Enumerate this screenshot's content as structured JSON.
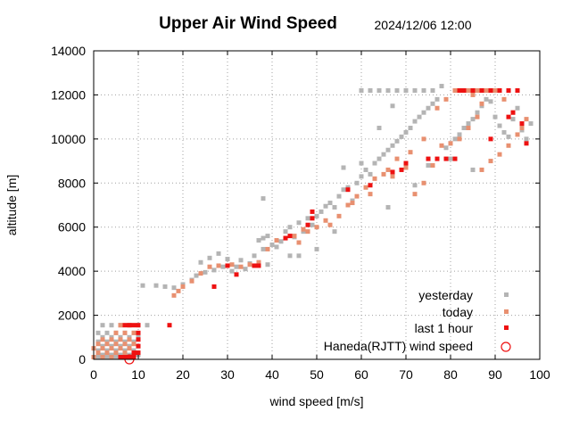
{
  "chart_data": {
    "type": "scatter",
    "title": "Upper Air Wind Speed",
    "timestamp": "2024/12/06 12:00",
    "xlabel": "wind speed  [m/s]",
    "ylabel": "altitude  [m]",
    "xlim": [
      0,
      100
    ],
    "ylim": [
      0,
      14000
    ],
    "xticks": [
      "0",
      "10",
      "20",
      "30",
      "40",
      "50",
      "60",
      "70",
      "80",
      "90",
      "100"
    ],
    "yticks": [
      "0",
      "2000",
      "4000",
      "6000",
      "8000",
      "10000",
      "12000",
      "14000"
    ],
    "grid": true,
    "legend_position": "bottom-right",
    "series": [
      {
        "name": "yesterday",
        "color": "#b4b4b4",
        "marker": "filled-square",
        "points": [
          [
            1,
            100
          ],
          [
            3,
            100
          ],
          [
            5,
            100
          ],
          [
            7,
            100
          ],
          [
            9,
            100
          ],
          [
            2,
            200
          ],
          [
            4,
            200
          ],
          [
            6,
            200
          ],
          [
            8,
            200
          ],
          [
            10,
            200
          ],
          [
            1,
            400
          ],
          [
            3,
            400
          ],
          [
            5,
            400
          ],
          [
            7,
            400
          ],
          [
            9,
            400
          ],
          [
            2,
            600
          ],
          [
            4,
            600
          ],
          [
            6,
            600
          ],
          [
            8,
            600
          ],
          [
            10,
            600
          ],
          [
            1,
            800
          ],
          [
            3,
            800
          ],
          [
            5,
            800
          ],
          [
            7,
            800
          ],
          [
            9,
            800
          ],
          [
            2,
            1000
          ],
          [
            4,
            1000
          ],
          [
            6,
            1000
          ],
          [
            8,
            1000
          ],
          [
            10,
            1000
          ],
          [
            1,
            1200
          ],
          [
            3,
            1200
          ],
          [
            5,
            1200
          ],
          [
            7,
            1200
          ],
          [
            9,
            1200
          ],
          [
            2,
            1550
          ],
          [
            4,
            1550
          ],
          [
            6,
            1550
          ],
          [
            8,
            1550
          ],
          [
            10,
            1550
          ],
          [
            12,
            1550
          ],
          [
            11,
            3350
          ],
          [
            14,
            3350
          ],
          [
            16,
            3300
          ],
          [
            18,
            3250
          ],
          [
            20,
            3400
          ],
          [
            22,
            3600
          ],
          [
            23,
            3800
          ],
          [
            25,
            3950
          ],
          [
            27,
            4050
          ],
          [
            29,
            4200
          ],
          [
            31,
            4000
          ],
          [
            33,
            4500
          ],
          [
            35,
            4350
          ],
          [
            37,
            4400
          ],
          [
            39,
            4300
          ],
          [
            24,
            4400
          ],
          [
            26,
            4600
          ],
          [
            28,
            4800
          ],
          [
            30,
            4550
          ],
          [
            32,
            4200
          ],
          [
            34,
            4100
          ],
          [
            36,
            4700
          ],
          [
            38,
            5000
          ],
          [
            40,
            5200
          ],
          [
            37,
            5400
          ],
          [
            38,
            5500
          ],
          [
            39,
            5600
          ],
          [
            41,
            5100
          ],
          [
            42,
            5350
          ],
          [
            43,
            5800
          ],
          [
            44,
            6000
          ],
          [
            45,
            5550
          ],
          [
            46,
            6200
          ],
          [
            47,
            5800
          ],
          [
            48,
            6400
          ],
          [
            49,
            6100
          ],
          [
            50,
            6500
          ],
          [
            51,
            6700
          ],
          [
            52,
            6950
          ],
          [
            53,
            7100
          ],
          [
            54,
            6900
          ],
          [
            55,
            7400
          ],
          [
            56,
            7700
          ],
          [
            57,
            7800
          ],
          [
            58,
            7200
          ],
          [
            59,
            8000
          ],
          [
            60,
            8300
          ],
          [
            61,
            8600
          ],
          [
            62,
            8400
          ],
          [
            63,
            8900
          ],
          [
            64,
            9100
          ],
          [
            65,
            9300
          ],
          [
            66,
            9500
          ],
          [
            67,
            9700
          ],
          [
            68,
            9900
          ],
          [
            69,
            10100
          ],
          [
            70,
            10300
          ],
          [
            71,
            10500
          ],
          [
            72,
            10800
          ],
          [
            73,
            11000
          ],
          [
            74,
            11200
          ],
          [
            75,
            11400
          ],
          [
            76,
            11600
          ],
          [
            77,
            11800
          ],
          [
            78,
            12400
          ],
          [
            79,
            9600
          ],
          [
            80,
            9800
          ],
          [
            81,
            10000
          ],
          [
            82,
            10200
          ],
          [
            83,
            10500
          ],
          [
            84,
            10700
          ],
          [
            85,
            10900
          ],
          [
            86,
            11200
          ],
          [
            87,
            11500
          ],
          [
            88,
            11800
          ],
          [
            89,
            11700
          ],
          [
            90,
            11000
          ],
          [
            91,
            10600
          ],
          [
            92,
            10300
          ],
          [
            93,
            10100
          ],
          [
            94,
            10900
          ],
          [
            95,
            11400
          ],
          [
            96,
            10400
          ],
          [
            97,
            10000
          ],
          [
            98,
            10700
          ],
          [
            60,
            12200
          ],
          [
            62,
            12200
          ],
          [
            64,
            12200
          ],
          [
            66,
            12200
          ],
          [
            68,
            12200
          ],
          [
            70,
            12200
          ],
          [
            72,
            12200
          ],
          [
            74,
            12200
          ],
          [
            76,
            12200
          ],
          [
            84,
            12200
          ],
          [
            86,
            12200
          ],
          [
            88,
            12200
          ],
          [
            90,
            12200
          ],
          [
            38,
            7300
          ],
          [
            44,
            4700
          ],
          [
            54,
            5800
          ],
          [
            66,
            6900
          ],
          [
            72,
            7900
          ],
          [
            75,
            8800
          ],
          [
            80,
            9100
          ],
          [
            85,
            8600
          ],
          [
            50,
            5000
          ],
          [
            46,
            4700
          ],
          [
            56,
            8700
          ],
          [
            60,
            8900
          ],
          [
            64,
            10500
          ],
          [
            67,
            11500
          ]
        ]
      },
      {
        "name": "today",
        "color": "#e89070",
        "marker": "filled-square",
        "points": [
          [
            0,
            100
          ],
          [
            2,
            100
          ],
          [
            4,
            100
          ],
          [
            6,
            100
          ],
          [
            8,
            100
          ],
          [
            1,
            300
          ],
          [
            3,
            300
          ],
          [
            5,
            300
          ],
          [
            7,
            300
          ],
          [
            9,
            300
          ],
          [
            0,
            500
          ],
          [
            2,
            500
          ],
          [
            4,
            500
          ],
          [
            6,
            500
          ],
          [
            8,
            500
          ],
          [
            1,
            700
          ],
          [
            3,
            700
          ],
          [
            5,
            700
          ],
          [
            7,
            700
          ],
          [
            9,
            700
          ],
          [
            2,
            900
          ],
          [
            4,
            900
          ],
          [
            6,
            900
          ],
          [
            8,
            900
          ],
          [
            5,
            1200
          ],
          [
            7,
            1200
          ],
          [
            9,
            1200
          ],
          [
            6,
            1550
          ],
          [
            8,
            1550
          ],
          [
            18,
            2900
          ],
          [
            19,
            3100
          ],
          [
            20,
            3300
          ],
          [
            22,
            3550
          ],
          [
            24,
            3900
          ],
          [
            26,
            4200
          ],
          [
            28,
            4250
          ],
          [
            31,
            4300
          ],
          [
            33,
            4200
          ],
          [
            35,
            4300
          ],
          [
            37,
            4400
          ],
          [
            39,
            5000
          ],
          [
            41,
            5400
          ],
          [
            43,
            5500
          ],
          [
            45,
            5600
          ],
          [
            47,
            5900
          ],
          [
            50,
            6000
          ],
          [
            52,
            6300
          ],
          [
            55,
            6500
          ],
          [
            57,
            7000
          ],
          [
            59,
            7400
          ],
          [
            61,
            7800
          ],
          [
            63,
            8200
          ],
          [
            65,
            8400
          ],
          [
            67,
            8300
          ],
          [
            70,
            8700
          ],
          [
            72,
            7500
          ],
          [
            74,
            8000
          ],
          [
            76,
            8800
          ],
          [
            78,
            9700
          ],
          [
            80,
            9800
          ],
          [
            82,
            10000
          ],
          [
            84,
            10500
          ],
          [
            86,
            11000
          ],
          [
            87,
            8600
          ],
          [
            89,
            9000
          ],
          [
            91,
            9300
          ],
          [
            93,
            9700
          ],
          [
            95,
            10200
          ],
          [
            97,
            10900
          ],
          [
            96,
            10500
          ],
          [
            94,
            11200
          ],
          [
            92,
            11800
          ],
          [
            90,
            12200
          ],
          [
            88,
            12200
          ],
          [
            86,
            12200
          ],
          [
            84,
            12200
          ],
          [
            46,
            5300
          ],
          [
            48,
            5800
          ],
          [
            53,
            6100
          ],
          [
            58,
            7100
          ],
          [
            62,
            7500
          ],
          [
            66,
            8600
          ],
          [
            68,
            9100
          ],
          [
            71,
            9400
          ],
          [
            74,
            10000
          ],
          [
            77,
            11400
          ],
          [
            79,
            11800
          ],
          [
            81,
            12200
          ],
          [
            83,
            12200
          ],
          [
            85,
            12000
          ],
          [
            87,
            11600
          ]
        ]
      },
      {
        "name": "last 1 hour",
        "color": "#ee1111",
        "marker": "filled-square",
        "points": [
          [
            6,
            100
          ],
          [
            7,
            100
          ],
          [
            8,
            100
          ],
          [
            9,
            100
          ],
          [
            9,
            300
          ],
          [
            10,
            300
          ],
          [
            10,
            600
          ],
          [
            10,
            900
          ],
          [
            10,
            1200
          ],
          [
            10,
            1550
          ],
          [
            9,
            1550
          ],
          [
            8,
            1550
          ],
          [
            7,
            1550
          ],
          [
            17,
            1550
          ],
          [
            27,
            3300
          ],
          [
            30,
            4250
          ],
          [
            32,
            3850
          ],
          [
            36,
            4250
          ],
          [
            37,
            4250
          ],
          [
            43,
            5500
          ],
          [
            44,
            5600
          ],
          [
            48,
            6100
          ],
          [
            49,
            6400
          ],
          [
            49,
            6700
          ],
          [
            57,
            7700
          ],
          [
            62,
            7900
          ],
          [
            67,
            8500
          ],
          [
            69,
            8600
          ],
          [
            70,
            8900
          ],
          [
            75,
            9100
          ],
          [
            77,
            9100
          ],
          [
            79,
            9100
          ],
          [
            81,
            9100
          ],
          [
            89,
            10000
          ],
          [
            82,
            12200
          ],
          [
            83,
            12200
          ],
          [
            85,
            12200
          ],
          [
            87,
            12200
          ],
          [
            89,
            12200
          ],
          [
            91,
            12200
          ],
          [
            93,
            12200
          ],
          [
            95,
            12200
          ],
          [
            94,
            11200
          ],
          [
            93,
            11000
          ],
          [
            96,
            10700
          ],
          [
            97,
            9800
          ]
        ]
      },
      {
        "name": "Haneda(RJTT) wind speed",
        "color": "#ee1111",
        "marker": "open-circle",
        "points": [
          [
            8,
            0
          ]
        ]
      }
    ]
  }
}
